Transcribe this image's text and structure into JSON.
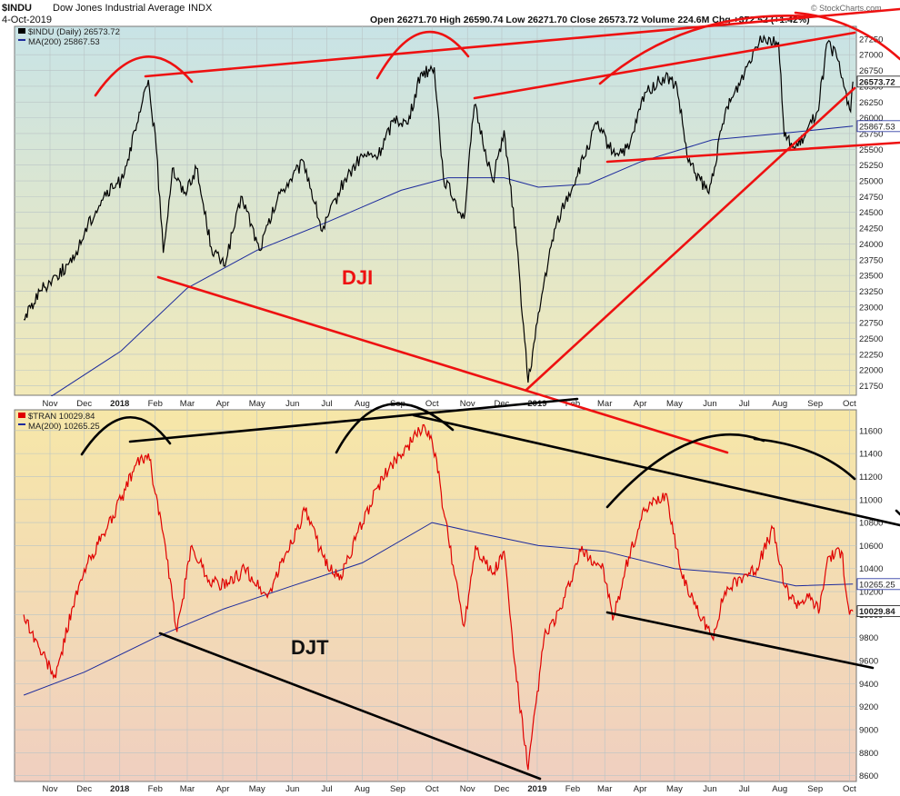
{
  "header": {
    "symbol": "$INDU",
    "name": "Dow Jones Industrial Average",
    "exchange": "INDX",
    "date": "4-Oct-2019",
    "ohlc": "Open 26271.70  High 26590.74  Low 26271.70  Close 26573.72  Volume 224.6M  Chg +372.52 (+1.42%)",
    "watermark": "© StockCharts.com"
  },
  "colors": {
    "dji_price": "#000000",
    "djt_price": "#e00000",
    "ma": "#1c2a9c",
    "annotation_red": "#ee1111",
    "annotation_black": "#000000"
  },
  "chart_data": [
    {
      "type": "line",
      "panel": "top",
      "symbol": "$INDU",
      "annotation_label": "DJI",
      "legend": [
        "$INDU (Daily) 26573.72",
        "MA(200) 25867.53"
      ],
      "last_value_label": "26573.72",
      "ma_value_label": "25867.53",
      "ylim": [
        21600,
        27450
      ],
      "yticks": [
        21750,
        22000,
        22250,
        22500,
        22750,
        23000,
        23250,
        23500,
        23750,
        24000,
        24250,
        24500,
        24750,
        25000,
        25250,
        25500,
        25750,
        26000,
        26250,
        26500,
        26750,
        27000,
        27250
      ],
      "series": [
        {
          "name": "$INDU",
          "x": [
            "2017-10-09",
            "2017-10-23",
            "2017-11-06",
            "2017-11-20",
            "2017-12-04",
            "2017-12-18",
            "2018-01-02",
            "2018-01-15",
            "2018-01-26",
            "2018-02-02",
            "2018-02-08",
            "2018-02-16",
            "2018-02-26",
            "2018-03-09",
            "2018-03-22",
            "2018-04-02",
            "2018-04-18",
            "2018-05-03",
            "2018-05-21",
            "2018-06-11",
            "2018-06-27",
            "2018-07-16",
            "2018-08-01",
            "2018-08-15",
            "2018-08-29",
            "2018-09-10",
            "2018-09-21",
            "2018-10-03",
            "2018-10-11",
            "2018-10-29",
            "2018-11-07",
            "2018-11-23",
            "2018-12-03",
            "2018-12-14",
            "2018-12-24",
            "2019-01-07",
            "2019-01-18",
            "2019-02-04",
            "2019-02-22",
            "2019-03-08",
            "2019-03-22",
            "2019-04-05",
            "2019-04-23",
            "2019-05-03",
            "2019-05-13",
            "2019-05-31",
            "2019-06-14",
            "2019-06-28",
            "2019-07-15",
            "2019-07-31",
            "2019-08-05",
            "2019-08-14",
            "2019-08-23",
            "2019-09-03",
            "2019-09-12",
            "2019-09-20",
            "2019-10-02",
            "2019-10-04"
          ],
          "values": [
            22800,
            23250,
            23500,
            23700,
            24300,
            24750,
            25000,
            25800,
            26600,
            25500,
            23860,
            25200,
            24800,
            25200,
            23950,
            23650,
            24750,
            23900,
            24800,
            25300,
            24200,
            25000,
            25400,
            25400,
            26000,
            25900,
            26700,
            26800,
            25050,
            24400,
            26200,
            25000,
            25800,
            24000,
            21800,
            23400,
            24350,
            25050,
            25900,
            25450,
            25500,
            26400,
            26650,
            26500,
            25300,
            24800,
            26050,
            26600,
            27300,
            27200,
            25700,
            25500,
            25700,
            26100,
            27200,
            26950,
            26100,
            26573.72
          ]
        },
        {
          "name": "MA(200)",
          "x": [
            "2017-10-09",
            "2018-01-02",
            "2018-03-01",
            "2018-05-01",
            "2018-07-02",
            "2018-09-04",
            "2018-10-15",
            "2018-12-03",
            "2019-01-02",
            "2019-02-15",
            "2019-04-01",
            "2019-06-03",
            "2019-08-01",
            "2019-10-04"
          ],
          "values": [
            21300,
            22300,
            23300,
            23900,
            24350,
            24850,
            25050,
            25050,
            24900,
            24950,
            25300,
            25650,
            25750,
            25867.53
          ]
        }
      ]
    },
    {
      "type": "line",
      "panel": "bottom",
      "symbol": "$TRAN",
      "annotation_label": "DJT",
      "legend": [
        "$TRAN 10029.84",
        "MA(200) 10265.25"
      ],
      "last_value_label": "10029.84",
      "ma_value_label": "10265.25",
      "ylim": [
        8550,
        11780
      ],
      "yticks": [
        8600,
        8800,
        9000,
        9200,
        9400,
        9600,
        9800,
        10000,
        10200,
        10400,
        10600,
        10800,
        11000,
        11200,
        11400,
        11600
      ],
      "series": [
        {
          "name": "$TRAN",
          "x": [
            "2017-10-09",
            "2017-10-23",
            "2017-11-06",
            "2017-11-20",
            "2017-12-04",
            "2017-12-18",
            "2018-01-02",
            "2018-01-15",
            "2018-01-26",
            "2018-02-08",
            "2018-02-20",
            "2018-03-05",
            "2018-03-20",
            "2018-04-05",
            "2018-04-20",
            "2018-05-10",
            "2018-05-25",
            "2018-06-12",
            "2018-06-28",
            "2018-07-12",
            "2018-07-26",
            "2018-08-14",
            "2018-08-30",
            "2018-09-13",
            "2018-09-24",
            "2018-10-04",
            "2018-10-11",
            "2018-10-29",
            "2018-11-08",
            "2018-11-23",
            "2018-12-03",
            "2018-12-12",
            "2018-12-24",
            "2019-01-07",
            "2019-01-22",
            "2019-02-08",
            "2019-02-28",
            "2019-03-08",
            "2019-03-22",
            "2019-04-05",
            "2019-04-24",
            "2019-05-06",
            "2019-05-20",
            "2019-06-03",
            "2019-06-14",
            "2019-07-01",
            "2019-07-12",
            "2019-07-26",
            "2019-08-05",
            "2019-08-15",
            "2019-08-26",
            "2019-09-05",
            "2019-09-12",
            "2019-09-24",
            "2019-10-01",
            "2019-10-04"
          ],
          "values": [
            10000,
            9700,
            9450,
            10050,
            10450,
            10700,
            11000,
            11300,
            11400,
            10700,
            9850,
            10600,
            10300,
            10250,
            10400,
            10150,
            10500,
            10900,
            10500,
            10300,
            10650,
            11100,
            11350,
            11500,
            11650,
            11400,
            10900,
            9900,
            10600,
            10350,
            10550,
            9600,
            8650,
            9800,
            10050,
            10550,
            10400,
            9950,
            10500,
            10900,
            11050,
            10400,
            10050,
            9800,
            10200,
            10350,
            10400,
            10750,
            10250,
            10100,
            10150,
            10050,
            10500,
            10550,
            10000,
            10029.84
          ]
        },
        {
          "name": "MA(200)",
          "x": [
            "2017-10-09",
            "2017-12-01",
            "2018-02-01",
            "2018-04-02",
            "2018-06-01",
            "2018-08-01",
            "2018-10-01",
            "2018-11-15",
            "2019-01-02",
            "2019-03-01",
            "2019-05-01",
            "2019-07-01",
            "2019-08-15",
            "2019-10-04"
          ],
          "values": [
            9300,
            9500,
            9800,
            10050,
            10250,
            10450,
            10800,
            10700,
            10600,
            10550,
            10400,
            10350,
            10250,
            10265.25
          ]
        }
      ]
    }
  ],
  "x_axis": {
    "start": "2017-10-01",
    "end": "2019-10-07",
    "labels": [
      {
        "date": "2017-11-01",
        "label": "Nov",
        "bold": false
      },
      {
        "date": "2017-12-01",
        "label": "Dec",
        "bold": false
      },
      {
        "date": "2018-01-01",
        "label": "2018",
        "bold": true
      },
      {
        "date": "2018-02-01",
        "label": "Feb",
        "bold": false
      },
      {
        "date": "2018-03-01",
        "label": "Mar",
        "bold": false
      },
      {
        "date": "2018-04-01",
        "label": "Apr",
        "bold": false
      },
      {
        "date": "2018-05-01",
        "label": "May",
        "bold": false
      },
      {
        "date": "2018-06-01",
        "label": "Jun",
        "bold": false
      },
      {
        "date": "2018-07-01",
        "label": "Jul",
        "bold": false
      },
      {
        "date": "2018-08-01",
        "label": "Aug",
        "bold": false
      },
      {
        "date": "2018-09-01",
        "label": "Sep",
        "bold": false
      },
      {
        "date": "2018-10-01",
        "label": "Oct",
        "bold": false
      },
      {
        "date": "2018-11-01",
        "label": "Nov",
        "bold": false
      },
      {
        "date": "2018-12-01",
        "label": "Dec",
        "bold": false
      },
      {
        "date": "2019-01-01",
        "label": "2019",
        "bold": true
      },
      {
        "date": "2019-02-01",
        "label": "Feb",
        "bold": false
      },
      {
        "date": "2019-03-01",
        "label": "Mar",
        "bold": false
      },
      {
        "date": "2019-04-01",
        "label": "Apr",
        "bold": false
      },
      {
        "date": "2019-05-01",
        "label": "May",
        "bold": false
      },
      {
        "date": "2019-06-01",
        "label": "Jun",
        "bold": false
      },
      {
        "date": "2019-07-01",
        "label": "Jul",
        "bold": false
      },
      {
        "date": "2019-08-01",
        "label": "Aug",
        "bold": false
      },
      {
        "date": "2019-09-01",
        "label": "Sep",
        "bold": false
      },
      {
        "date": "2019-10-01",
        "label": "Oct",
        "bold": false
      }
    ]
  }
}
